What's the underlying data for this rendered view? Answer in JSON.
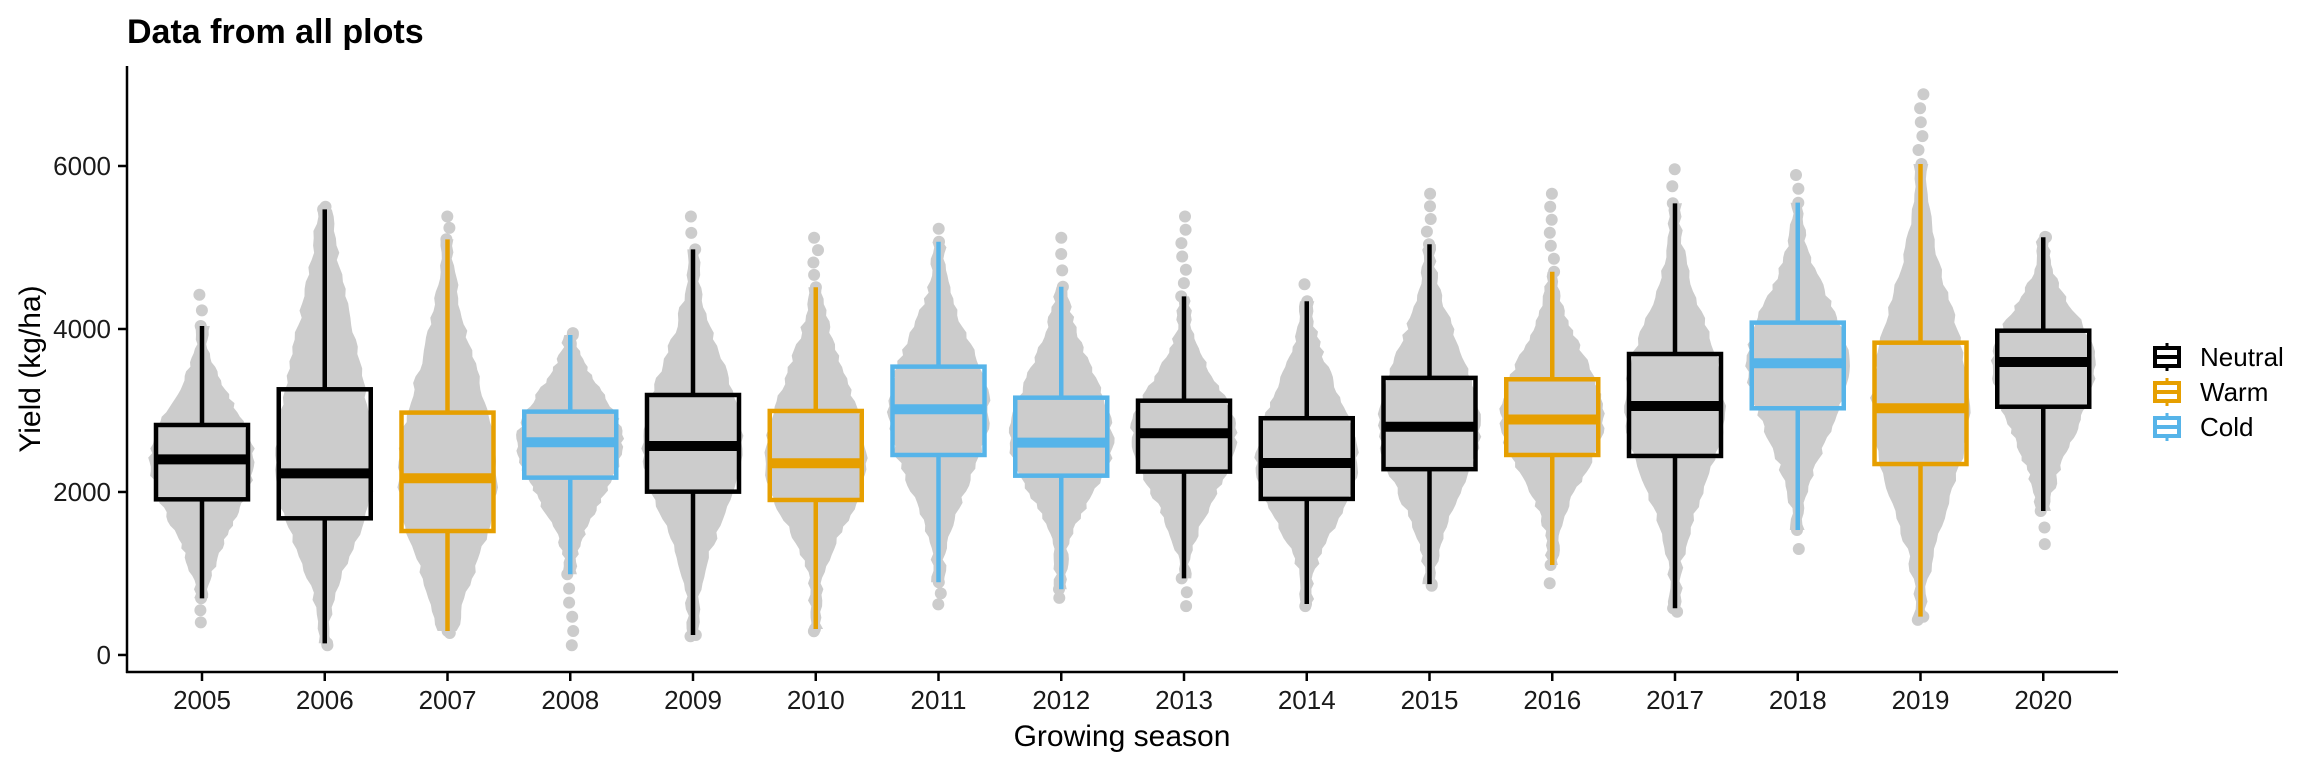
{
  "chart_data": {
    "type": "boxplot",
    "title": "Data from all plots",
    "xlabel": "Growing season",
    "ylabel": "Yield (kg/ha)",
    "ylim": [
      -209,
      7227
    ],
    "yticks": [
      0,
      2000,
      4000,
      6000
    ],
    "ytick_labels": [
      "0",
      "2000",
      "4000",
      "6000"
    ],
    "grid": false,
    "legend": {
      "placement": "right",
      "entries": [
        {
          "name": "Neutral",
          "color": "#000000"
        },
        {
          "name": "Warm",
          "color": "#E69F00"
        },
        {
          "name": "Cold",
          "color": "#56B4E9"
        }
      ]
    },
    "point_color": "#CCCCCC",
    "categories": [
      "2005",
      "2006",
      "2007",
      "2008",
      "2009",
      "2010",
      "2011",
      "2012",
      "2013",
      "2014",
      "2015",
      "2016",
      "2017",
      "2018",
      "2019",
      "2020"
    ],
    "boxes": [
      {
        "season": "2005",
        "group": "Neutral",
        "whisker_low": 695,
        "q1": 1910,
        "median": 2400,
        "q3": 2822,
        "whisker_high": 4037,
        "points_min": 400,
        "points_max": 4420
      },
      {
        "season": "2006",
        "group": "Neutral",
        "whisker_low": 143,
        "q1": 1677,
        "median": 2229,
        "q3": 3260,
        "whisker_high": 5468,
        "points_min": 120,
        "points_max": 5500
      },
      {
        "season": "2007",
        "group": "Warm",
        "whisker_low": 294,
        "q1": 1521,
        "median": 2168,
        "q3": 2974,
        "whisker_high": 5100,
        "points_min": 270,
        "points_max": 5380
      },
      {
        "season": "2008",
        "group": "Cold",
        "whisker_low": 990,
        "q1": 2176,
        "median": 2610,
        "q3": 2986,
        "whisker_high": 3926,
        "points_min": 120,
        "points_max": 3950
      },
      {
        "season": "2009",
        "group": "Neutral",
        "whisker_low": 245,
        "q1": 2004,
        "median": 2564,
        "q3": 3190,
        "whisker_high": 4977,
        "points_min": 230,
        "points_max": 5380
      },
      {
        "season": "2010",
        "group": "Warm",
        "whisker_low": 319,
        "q1": 1902,
        "median": 2352,
        "q3": 2994,
        "whisker_high": 4512,
        "points_min": 290,
        "points_max": 5120
      },
      {
        "season": "2011",
        "group": "Cold",
        "whisker_low": 892,
        "q1": 2454,
        "median": 3015,
        "q3": 3538,
        "whisker_high": 5071,
        "points_min": 620,
        "points_max": 5230
      },
      {
        "season": "2012",
        "group": "Cold",
        "whisker_low": 806,
        "q1": 2200,
        "median": 2605,
        "q3": 3157,
        "whisker_high": 4519,
        "points_min": 700,
        "points_max": 5120
      },
      {
        "season": "2013",
        "group": "Neutral",
        "whisker_low": 940,
        "q1": 2250,
        "median": 2720,
        "q3": 3120,
        "whisker_high": 4400,
        "points_min": 600,
        "points_max": 5380
      },
      {
        "season": "2014",
        "group": "Neutral",
        "whisker_low": 625,
        "q1": 1915,
        "median": 2355,
        "q3": 2905,
        "whisker_high": 4340,
        "points_min": 600,
        "points_max": 4550
      },
      {
        "season": "2015",
        "group": "Neutral",
        "whisker_low": 870,
        "q1": 2280,
        "median": 2800,
        "q3": 3400,
        "whisker_high": 5040,
        "points_min": 850,
        "points_max": 5660
      },
      {
        "season": "2016",
        "group": "Warm",
        "whisker_low": 1104,
        "q1": 2454,
        "median": 2890,
        "q3": 3383,
        "whisker_high": 4703,
        "points_min": 880,
        "points_max": 5660
      },
      {
        "season": "2017",
        "group": "Neutral",
        "whisker_low": 573,
        "q1": 2442,
        "median": 3055,
        "q3": 3693,
        "whisker_high": 5542,
        "points_min": 530,
        "points_max": 5960
      },
      {
        "season": "2018",
        "group": "Cold",
        "whisker_low": 1534,
        "q1": 3027,
        "median": 3579,
        "q3": 4078,
        "whisker_high": 5550,
        "points_min": 1300,
        "points_max": 5890
      },
      {
        "season": "2019",
        "group": "Warm",
        "whisker_low": 470,
        "q1": 2343,
        "median": 3027,
        "q3": 3832,
        "whisker_high": 6025,
        "points_min": 430,
        "points_max": 6880
      },
      {
        "season": "2020",
        "group": "Neutral",
        "whisker_low": 1767,
        "q1": 3046,
        "median": 3595,
        "q3": 3979,
        "whisker_high": 5125,
        "points_min": 1360,
        "points_max": 5130
      }
    ]
  }
}
